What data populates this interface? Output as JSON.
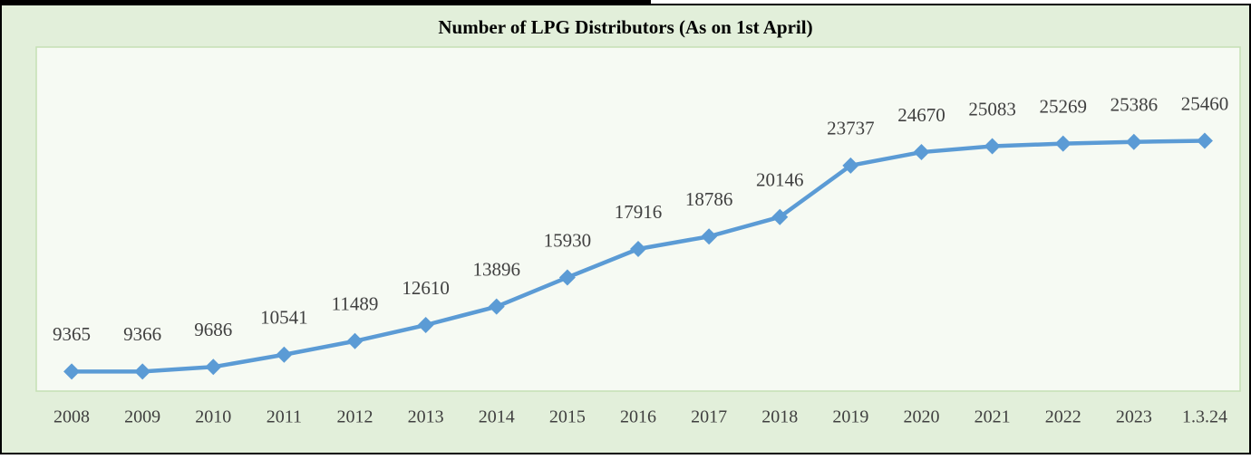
{
  "chart_data": {
    "type": "line",
    "title": "Number of LPG Distributors (As on 1st April)",
    "categories": [
      "2008",
      "2009",
      "2010",
      "2011",
      "2012",
      "2013",
      "2014",
      "2015",
      "2016",
      "2017",
      "2018",
      "2019",
      "2020",
      "2021",
      "2022",
      "2023",
      "1.3.24"
    ],
    "series": [
      {
        "name": "Number of LPG Distributors",
        "color": "#5b9bd5",
        "values": [
          9365,
          9366,
          9686,
          10541,
          11489,
          12610,
          13896,
          15930,
          17916,
          18786,
          20146,
          23737,
          24670,
          25083,
          25269,
          25386,
          25460
        ]
      }
    ],
    "ylim": [
      8000,
      32000
    ]
  }
}
